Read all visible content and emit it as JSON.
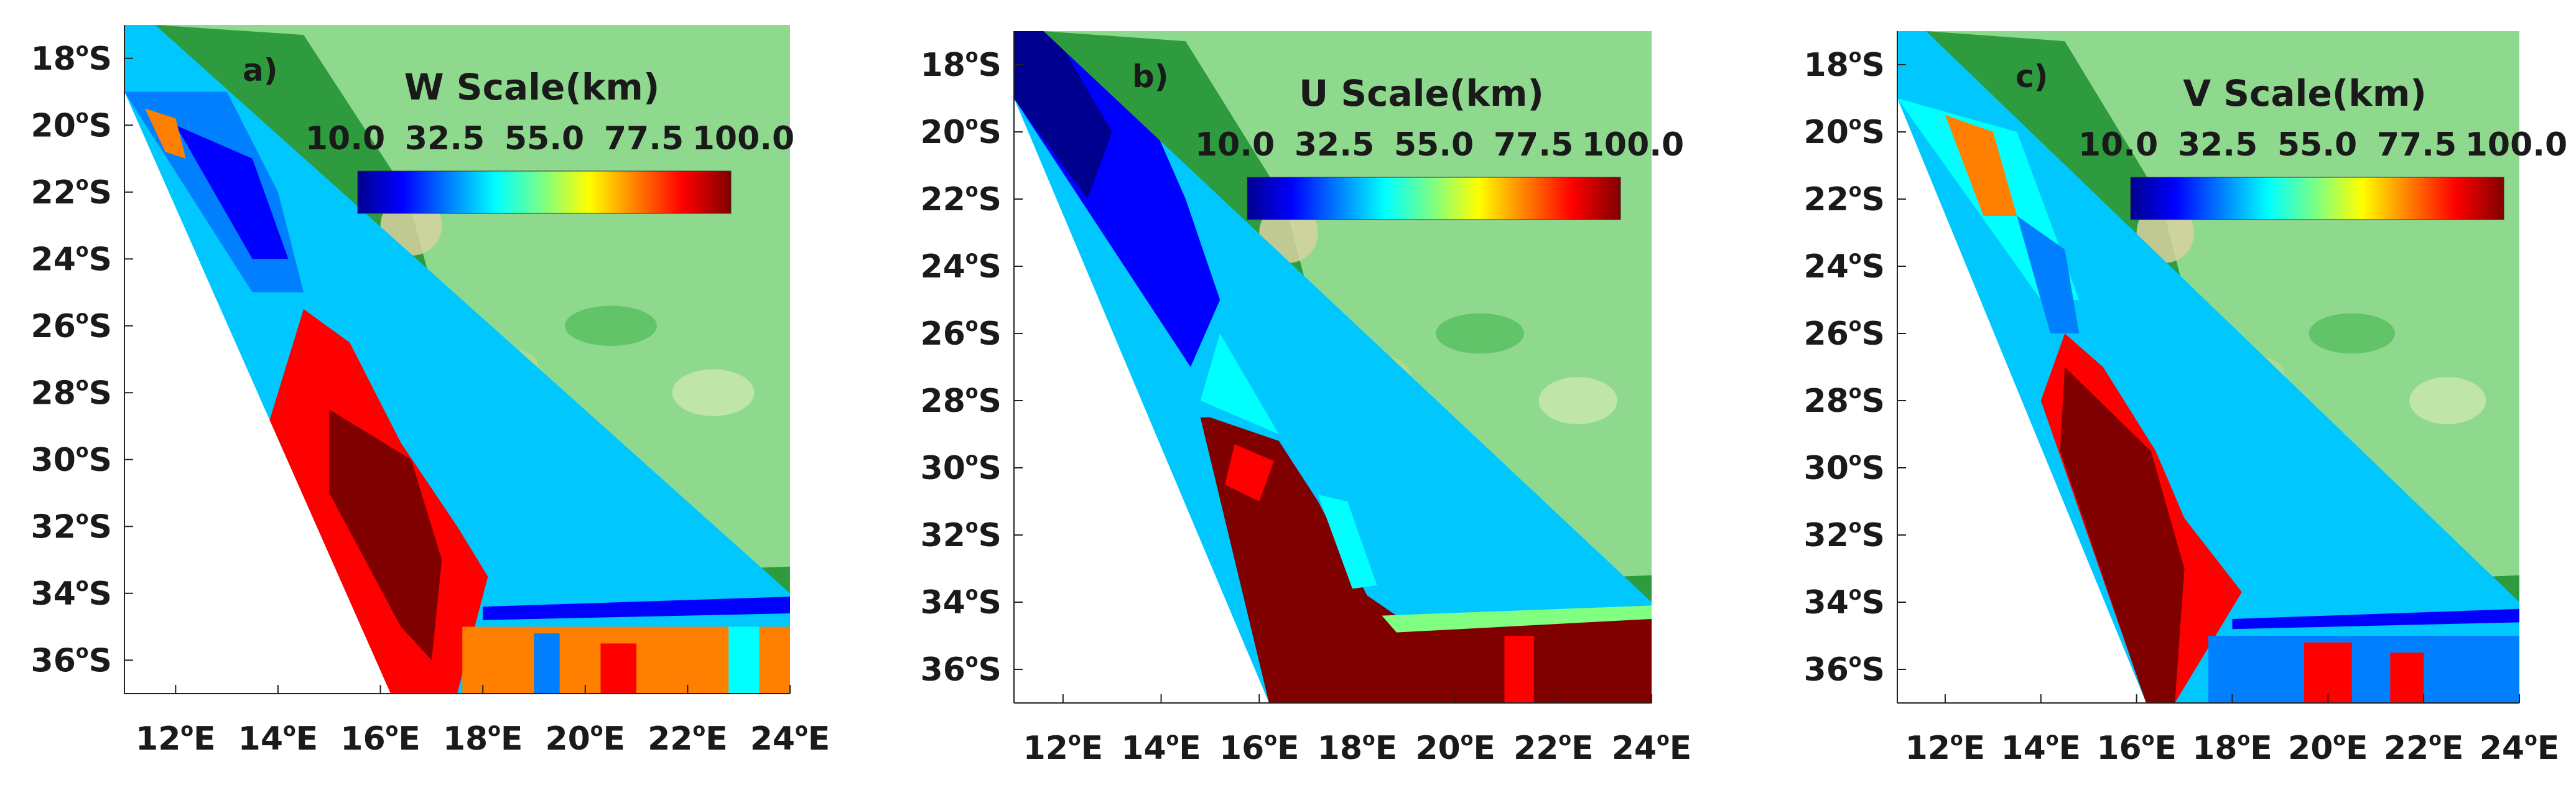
{
  "panels": [
    {
      "label": "a)",
      "title": "W Scale(km)",
      "colorbar_ticks": [
        "10.0",
        "32.5",
        "55.0",
        "77.5",
        "100.0"
      ],
      "ocean_field": "W"
    },
    {
      "label": "b)",
      "title": "U Scale(km)",
      "colorbar_ticks": [
        "10.0",
        "32.5",
        "55.0",
        "77.5",
        "100.0"
      ],
      "ocean_field": "U"
    },
    {
      "label": "c)",
      "title": "V Scale(km)",
      "colorbar_ticks": [
        "10.0",
        "32.5",
        "55.0",
        "77.5",
        "100.0"
      ],
      "ocean_field": "V"
    }
  ],
  "y_ticks": [
    {
      "deg": "18",
      "hemi": "S"
    },
    {
      "deg": "20",
      "hemi": "S"
    },
    {
      "deg": "22",
      "hemi": "S"
    },
    {
      "deg": "24",
      "hemi": "S"
    },
    {
      "deg": "26",
      "hemi": "S"
    },
    {
      "deg": "28",
      "hemi": "S"
    },
    {
      "deg": "30",
      "hemi": "S"
    },
    {
      "deg": "32",
      "hemi": "S"
    },
    {
      "deg": "34",
      "hemi": "S"
    },
    {
      "deg": "36",
      "hemi": "S"
    }
  ],
  "x_ticks": [
    {
      "deg": "12",
      "hemi": "E"
    },
    {
      "deg": "14",
      "hemi": "E"
    },
    {
      "deg": "16",
      "hemi": "E"
    },
    {
      "deg": "18",
      "hemi": "E"
    },
    {
      "deg": "20",
      "hemi": "E"
    },
    {
      "deg": "22",
      "hemi": "E"
    },
    {
      "deg": "24",
      "hemi": "E"
    }
  ],
  "degree_symbol": "o",
  "colormap": [
    "#00008f",
    "#0000ff",
    "#0080ff",
    "#00ffff",
    "#80ff80",
    "#ffff00",
    "#ff8000",
    "#ff0000",
    "#800000"
  ]
}
